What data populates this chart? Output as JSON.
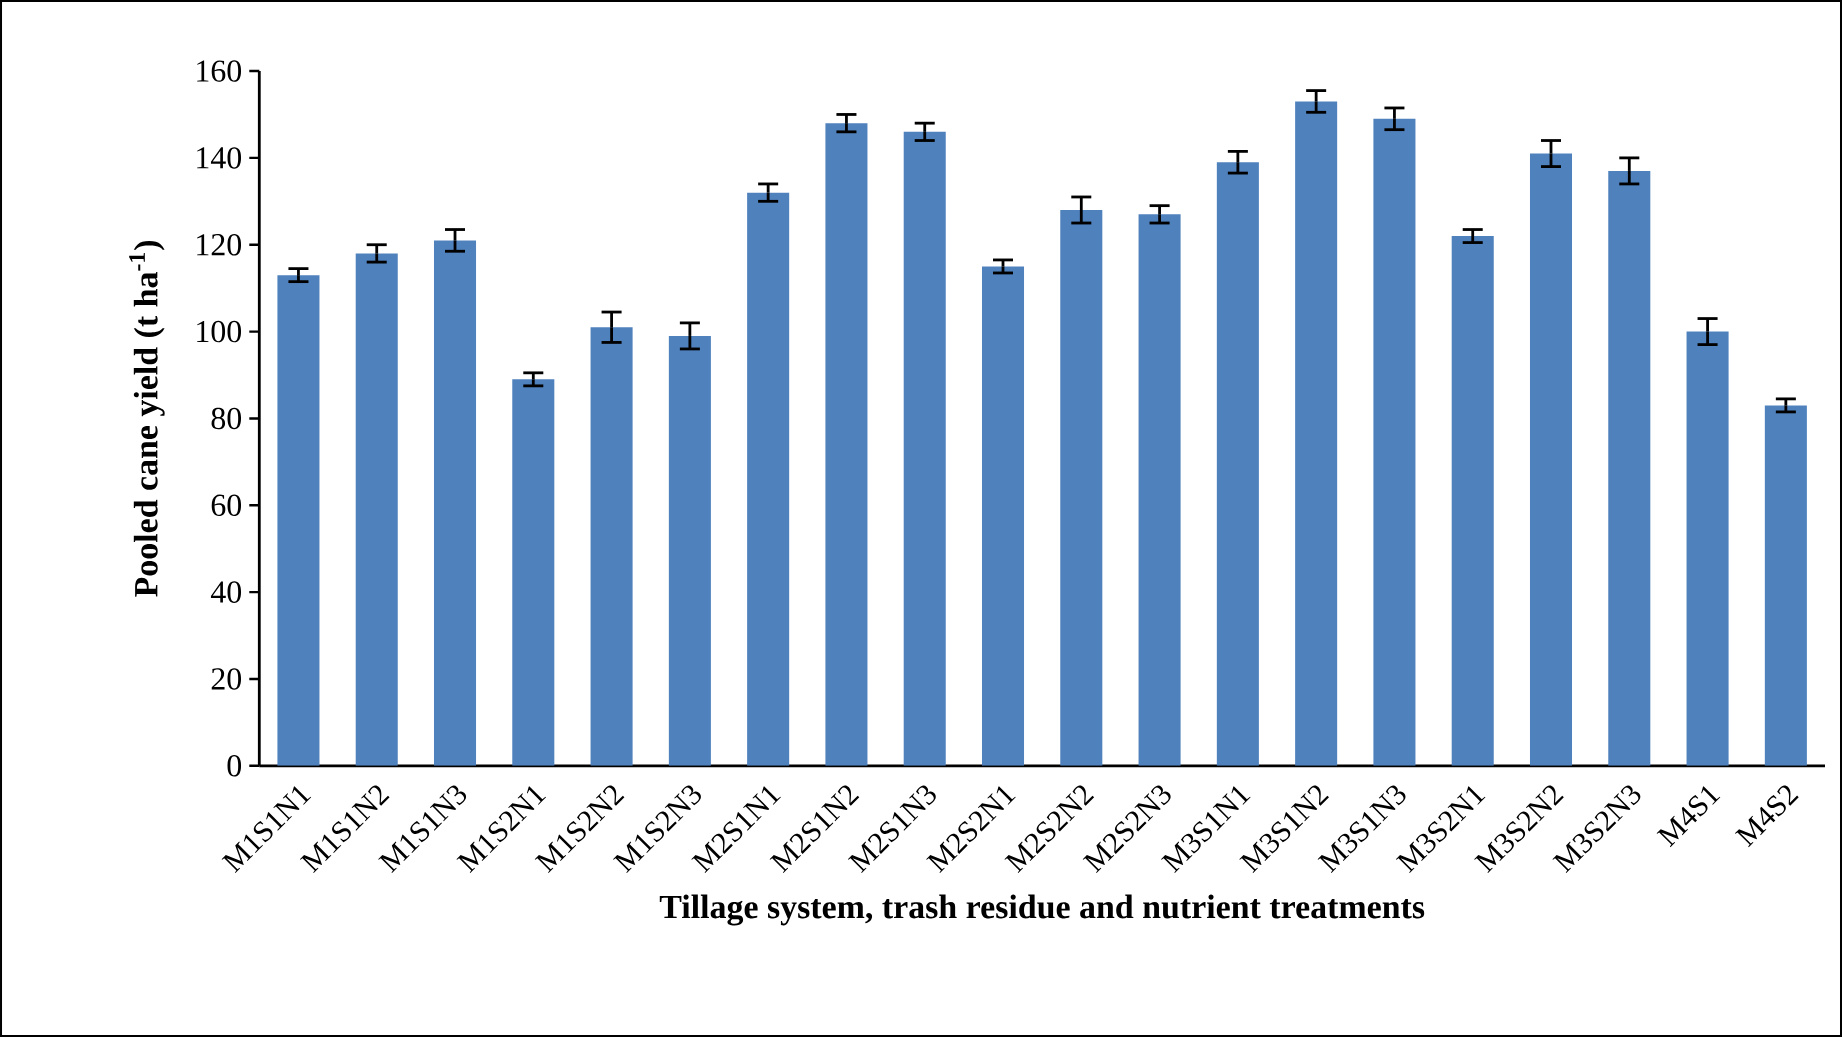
{
  "chart_data": {
    "type": "bar",
    "xlabel": "Tillage system, trash residue  and nutrient treatments",
    "ylabel": "Pooled cane yield (t ha$^{-1}$)",
    "categories": [
      "M1S1N1",
      "M1S1N2",
      "M1S1N3",
      "M1S2N1",
      "M1S2N2",
      "M1S2N3",
      "M2S1N1",
      "M2S1N2",
      "M2S1N3",
      "M2S2N1",
      "M2S2N2",
      "M2S2N3",
      "M3S1N1",
      "M3S1N2",
      "M3S1N3",
      "M3S2N1",
      "M3S2N2",
      "M3S2N3",
      "M4S1",
      "M4S2"
    ],
    "values": [
      113,
      118,
      121,
      89,
      101,
      99,
      132,
      148,
      146,
      115,
      128,
      127,
      139,
      153,
      149,
      122,
      141,
      137,
      100,
      83
    ],
    "errors": [
      1.5,
      2,
      2.5,
      1.5,
      3.5,
      3,
      2,
      2,
      2,
      1.5,
      3,
      2,
      2.5,
      2.5,
      2.5,
      1.5,
      3,
      3,
      3,
      1.5
    ],
    "color": "#4f81bd",
    "ylim": [
      0,
      160
    ],
    "yticks": [
      0,
      20,
      40,
      60,
      80,
      100,
      120,
      140,
      160
    ],
    "grid": false
  }
}
